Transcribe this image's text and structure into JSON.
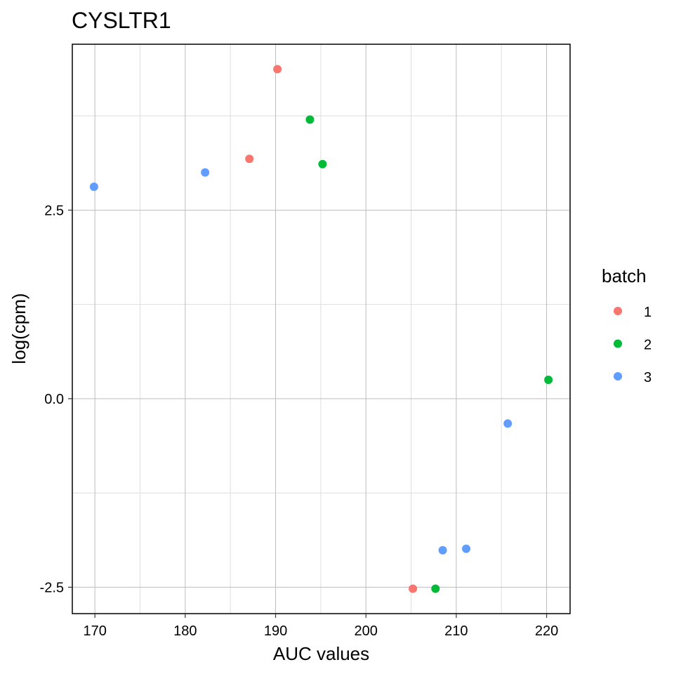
{
  "chart_data": {
    "type": "scatter",
    "title": "CYSLTR1",
    "xlabel": "AUC values",
    "ylabel": "log(cpm)",
    "xlim": [
      167.5,
      222.6
    ],
    "ylim": [
      -2.85,
      4.7
    ],
    "xticks": [
      170,
      180,
      190,
      200,
      210,
      220
    ],
    "xtick_labels": [
      "170",
      "180",
      "190",
      "200",
      "210",
      "220"
    ],
    "yticks": [
      -2.5,
      0.0,
      2.5
    ],
    "ytick_labels": [
      "-2.5",
      "0.0",
      "2.5"
    ],
    "grid": true,
    "legend": {
      "title": "batch",
      "position": "right"
    },
    "series": [
      {
        "name": "1",
        "color": "#F8766D",
        "points": [
          {
            "x": 190.2,
            "y": 4.37
          },
          {
            "x": 187.1,
            "y": 3.18
          },
          {
            "x": 205.2,
            "y": -2.52
          }
        ]
      },
      {
        "name": "2",
        "color": "#00BA38",
        "points": [
          {
            "x": 193.8,
            "y": 3.7
          },
          {
            "x": 195.2,
            "y": 3.11
          },
          {
            "x": 220.2,
            "y": 0.25
          },
          {
            "x": 207.7,
            "y": -2.52
          }
        ]
      },
      {
        "name": "3",
        "color": "#619CFF",
        "points": [
          {
            "x": 169.9,
            "y": 2.81
          },
          {
            "x": 182.2,
            "y": 3.0
          },
          {
            "x": 215.7,
            "y": -0.33
          },
          {
            "x": 211.1,
            "y": -1.99
          },
          {
            "x": 208.5,
            "y": -2.01
          }
        ]
      }
    ]
  }
}
